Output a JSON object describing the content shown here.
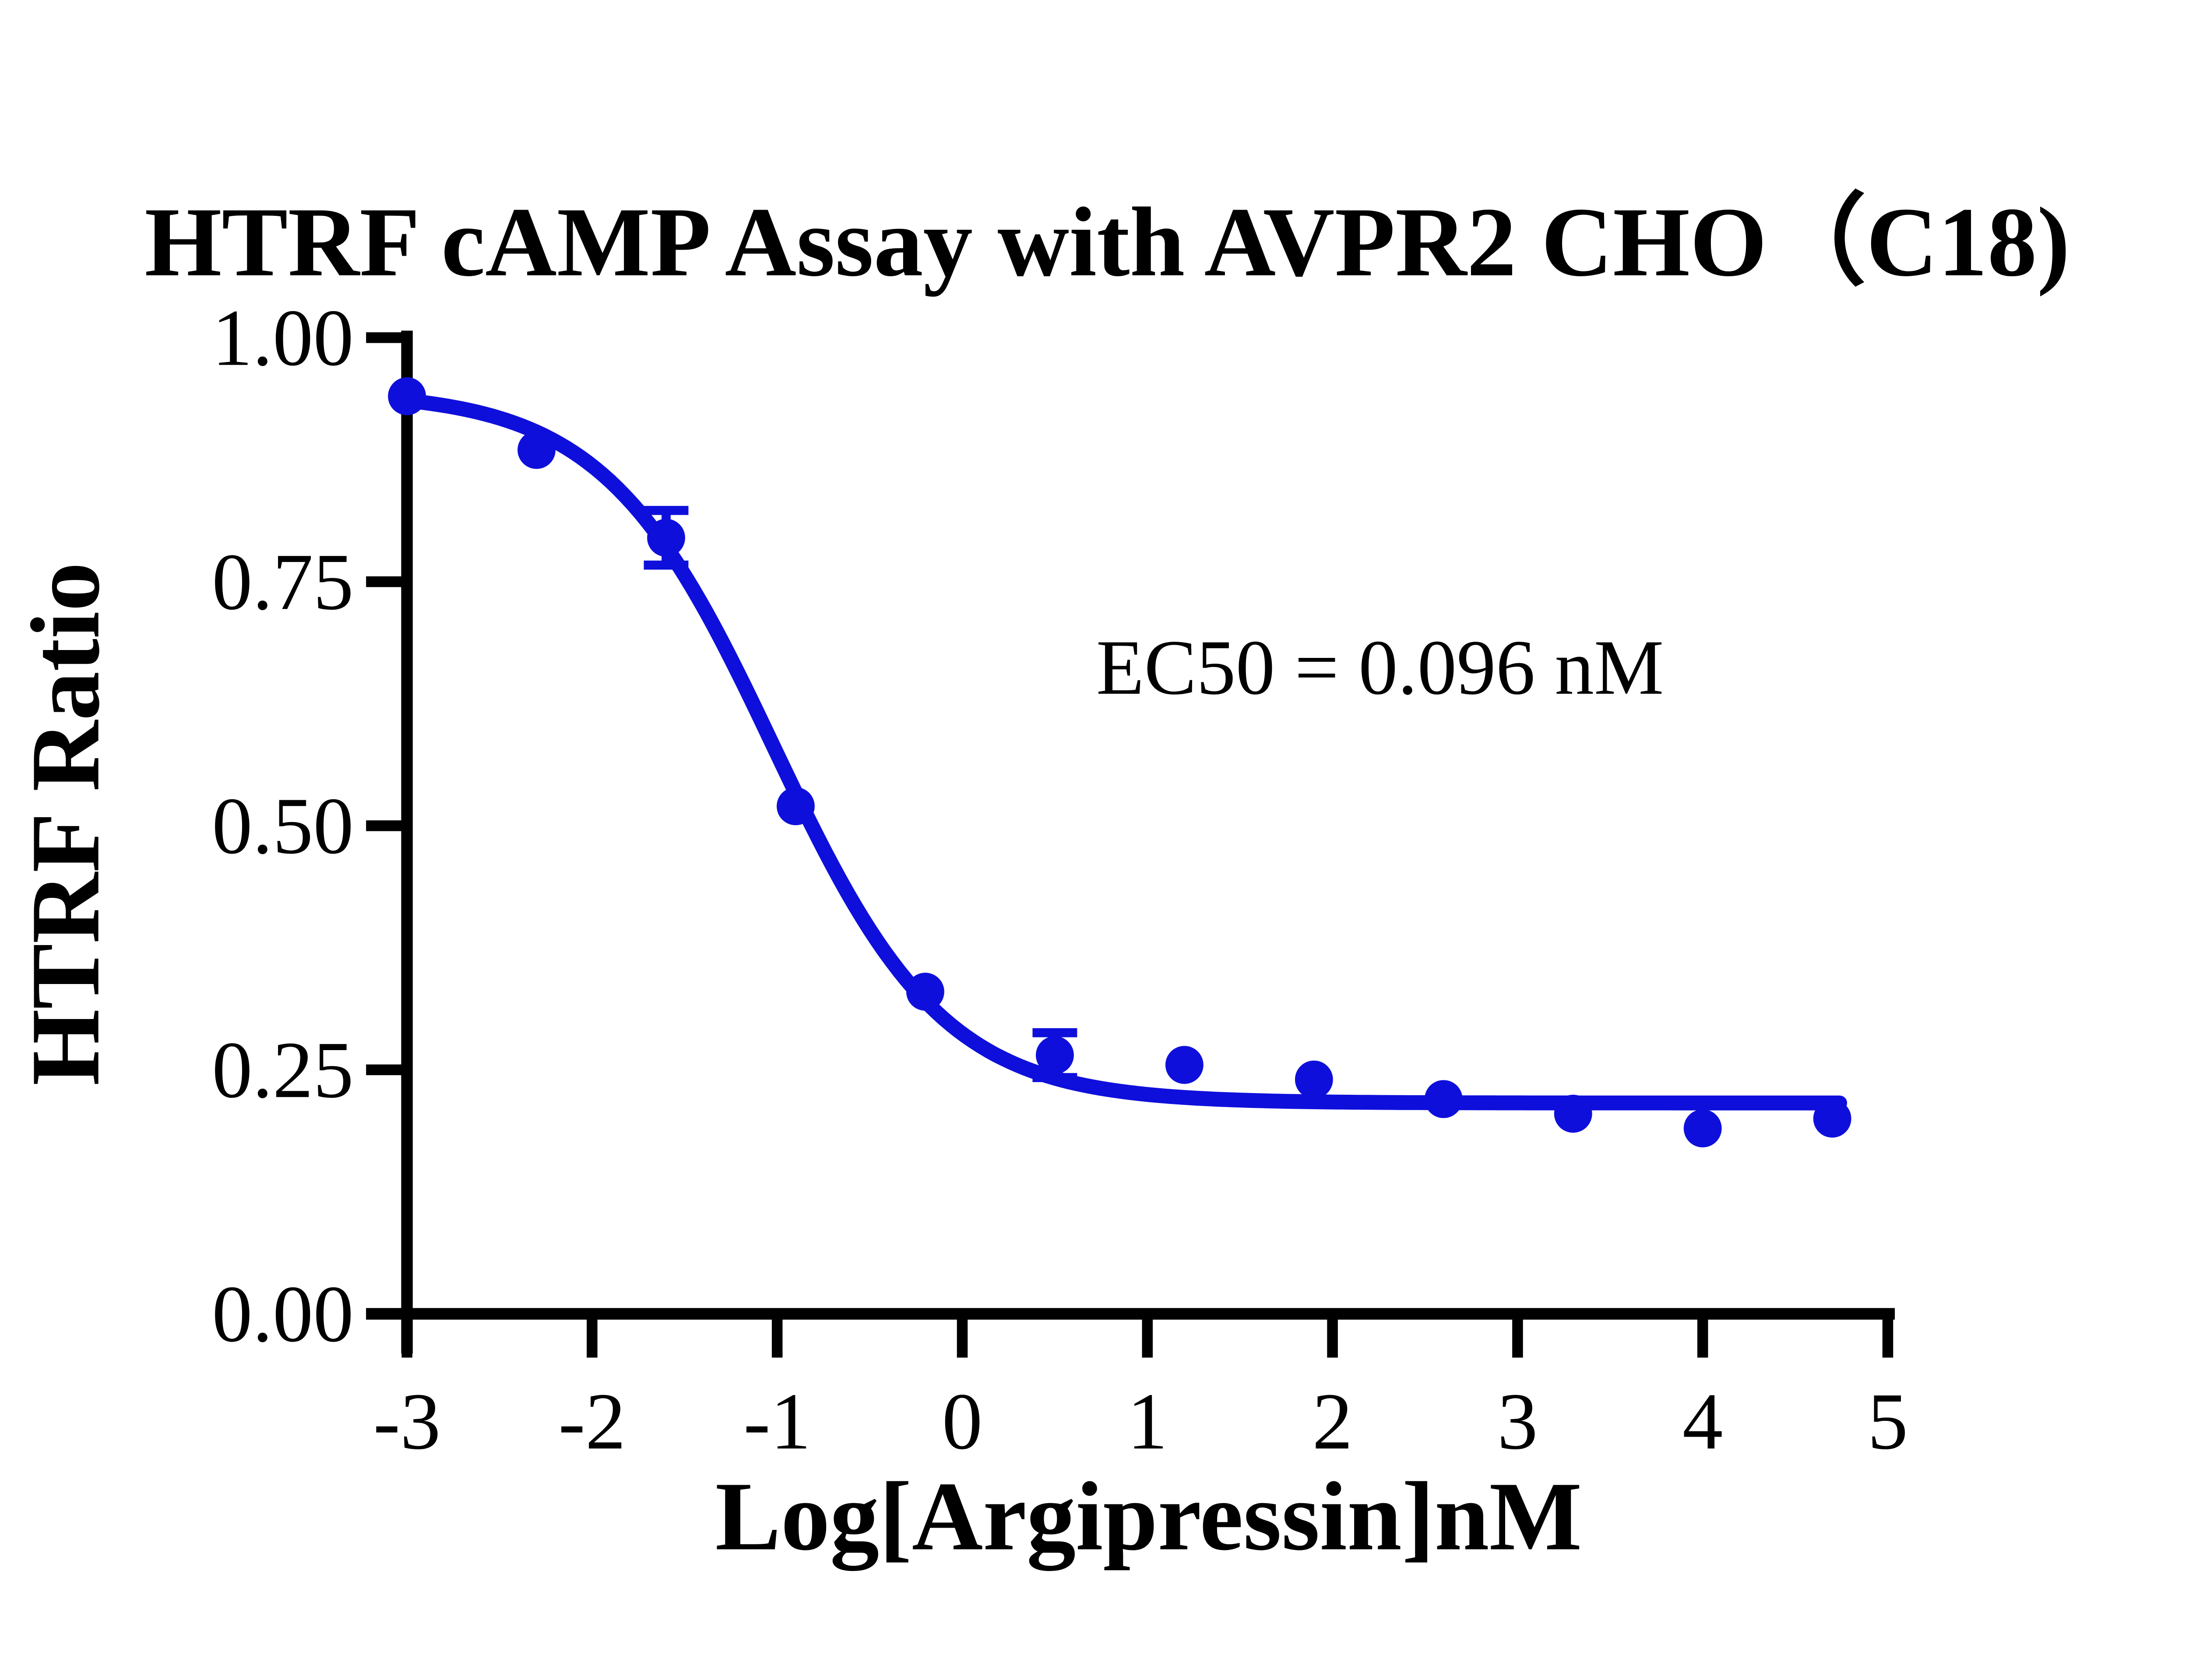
{
  "title": "HTRF cAMP Assay with AVPR2 CHO（C18)",
  "annotation": {
    "ec50_text": "EC50 = 0.096 nM",
    "ec50_value_nM": 0.096
  },
  "colors": {
    "series_blue": "#0F0FDC",
    "axis_black": "#000000",
    "background": "#FFFFFF"
  },
  "chart_data": {
    "type": "scatter",
    "title": "HTRF cAMP Assay with AVPR2 CHO（C18)",
    "xlabel": "Log[Argipressin]nM",
    "ylabel": "HTRF Ratio",
    "xlim": [
      -3,
      5
    ],
    "ylim": [
      0.0,
      1.0
    ],
    "x_ticks": [
      -3,
      -2,
      -1,
      0,
      1,
      2,
      3,
      4,
      5
    ],
    "y_ticks": [
      {
        "value": 1.0,
        "label": "1.00"
      },
      {
        "value": 0.75,
        "label": "0.75"
      },
      {
        "value": 0.5,
        "label": "0.50"
      },
      {
        "value": 0.25,
        "label": "0.25"
      },
      {
        "value": 0.0,
        "label": "0.00"
      }
    ],
    "grid": false,
    "legend": "none",
    "series": [
      {
        "name": "Argipressin",
        "marker": "circle",
        "color": "#0F0FDC",
        "points": [
          {
            "x": -3.0,
            "y": 0.94,
            "err": null
          },
          {
            "x": -2.3,
            "y": 0.885,
            "err": null
          },
          {
            "x": -1.6,
            "y": 0.795,
            "err": 0.028
          },
          {
            "x": -0.9,
            "y": 0.52,
            "err": null
          },
          {
            "x": -0.2,
            "y": 0.33,
            "err": null
          },
          {
            "x": 0.5,
            "y": 0.265,
            "err": 0.023
          },
          {
            "x": 1.2,
            "y": 0.255,
            "err": null
          },
          {
            "x": 1.9,
            "y": 0.24,
            "err": null
          },
          {
            "x": 2.6,
            "y": 0.22,
            "err": null
          },
          {
            "x": 3.3,
            "y": 0.205,
            "err": null
          },
          {
            "x": 4.0,
            "y": 0.19,
            "err": null
          },
          {
            "x": 4.7,
            "y": 0.2,
            "err": null
          }
        ],
        "fit_curve": {
          "model": "4PL",
          "top": 0.945,
          "bottom": 0.216,
          "logEC50": -1.018,
          "hill": 0.95,
          "x_start": -3.02,
          "x_end": 4.74
        },
        "ec50_nM": 0.096
      }
    ]
  }
}
